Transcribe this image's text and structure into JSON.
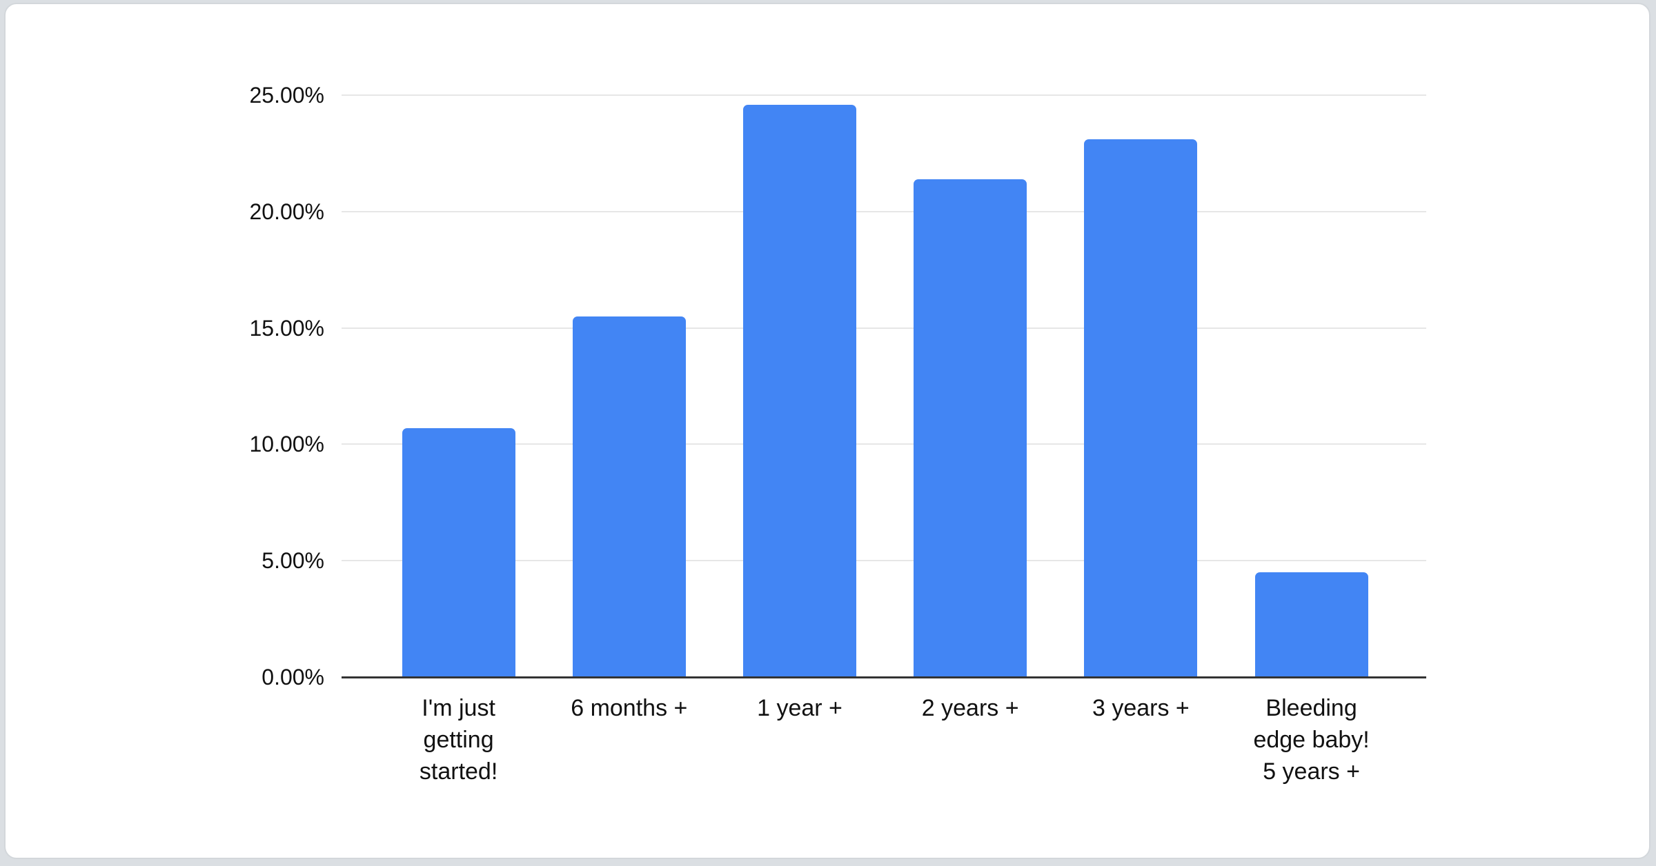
{
  "page": {
    "background_color": "#dbdfe3",
    "card_background": "#ffffff",
    "card_border_color": "#d3d7db"
  },
  "chart_data": {
    "type": "bar",
    "title": "",
    "xlabel": "",
    "ylabel": "",
    "categories": [
      "I'm just getting started!",
      "6 months +",
      "1 year +",
      "2 years +",
      "3 years +",
      "Bleeding edge baby! 5 years +"
    ],
    "category_label_lines": [
      [
        "I'm just",
        "getting",
        "started!"
      ],
      [
        "6 months +"
      ],
      [
        "1 year +"
      ],
      [
        "2 years +"
      ],
      [
        "3 years +"
      ],
      [
        "Bleeding",
        "edge baby!",
        "5 years +"
      ]
    ],
    "values": [
      10.7,
      15.5,
      24.6,
      21.4,
      23.1,
      4.5
    ],
    "unit": "%",
    "ylim": [
      0,
      25
    ],
    "y_tick_values": [
      0,
      5,
      10,
      15,
      20,
      25
    ],
    "y_tick_labels": [
      "0.00%",
      "5.00%",
      "10.00%",
      "15.00%",
      "20.00%",
      "25.00%"
    ],
    "grid": true,
    "legend": "none",
    "bar_color": "#4285f4",
    "gridline_color": "#e6e6e6",
    "axis_line_color": "#333333",
    "tick_label_color": "#111111"
  }
}
